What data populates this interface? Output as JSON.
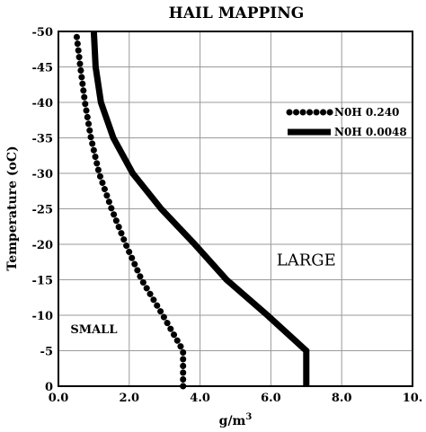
{
  "chart_data": {
    "type": "line",
    "title": "HAIL MAPPING",
    "xlabel": "g/m",
    "xlabel_superscript": "3",
    "ylabel": "Temperature (oC)",
    "xlim": [
      0,
      10
    ],
    "ylim": [
      0,
      -50
    ],
    "grid": true,
    "legend_position": "top-right",
    "x_ticks": [
      0,
      2,
      4,
      6,
      8,
      10
    ],
    "x_tick_labels": [
      "0.0",
      "2.0",
      "4.0",
      "6.0",
      "8.0",
      "10."
    ],
    "y_ticks": [
      -50,
      -45,
      -40,
      -35,
      -30,
      -25,
      -20,
      -15,
      -10,
      -5,
      0
    ],
    "y_tick_labels": [
      "-50",
      "-45",
      "-40",
      "-35",
      "-30",
      "-25",
      "-20",
      "-15",
      "-10",
      "-5",
      "0"
    ],
    "series": [
      {
        "name": "N0H 0.240",
        "style": "dotted",
        "color": "#000000",
        "points": [
          [
            3.52,
            0
          ],
          [
            3.52,
            -5
          ],
          [
            2.95,
            -10
          ],
          [
            2.35,
            -15
          ],
          [
            1.9,
            -20
          ],
          [
            1.5,
            -25
          ],
          [
            1.15,
            -30
          ],
          [
            0.92,
            -35
          ],
          [
            0.75,
            -40
          ],
          [
            0.62,
            -45
          ],
          [
            0.5,
            -50
          ]
        ]
      },
      {
        "name": "N0H 0.0048",
        "style": "solid",
        "color": "#000000",
        "points": [
          [
            7.0,
            0
          ],
          [
            7.0,
            -5
          ],
          [
            5.9,
            -10
          ],
          [
            4.75,
            -15
          ],
          [
            3.85,
            -20
          ],
          [
            2.9,
            -25
          ],
          [
            2.1,
            -30
          ],
          [
            1.55,
            -35
          ],
          [
            1.2,
            -40
          ],
          [
            1.05,
            -45
          ],
          [
            1.0,
            -50
          ]
        ]
      }
    ],
    "annotations": [
      {
        "text": "LARGE",
        "x": 7.0,
        "y": -17
      },
      {
        "text": "SMALL",
        "x": 1.0,
        "y": -7.5
      }
    ]
  }
}
